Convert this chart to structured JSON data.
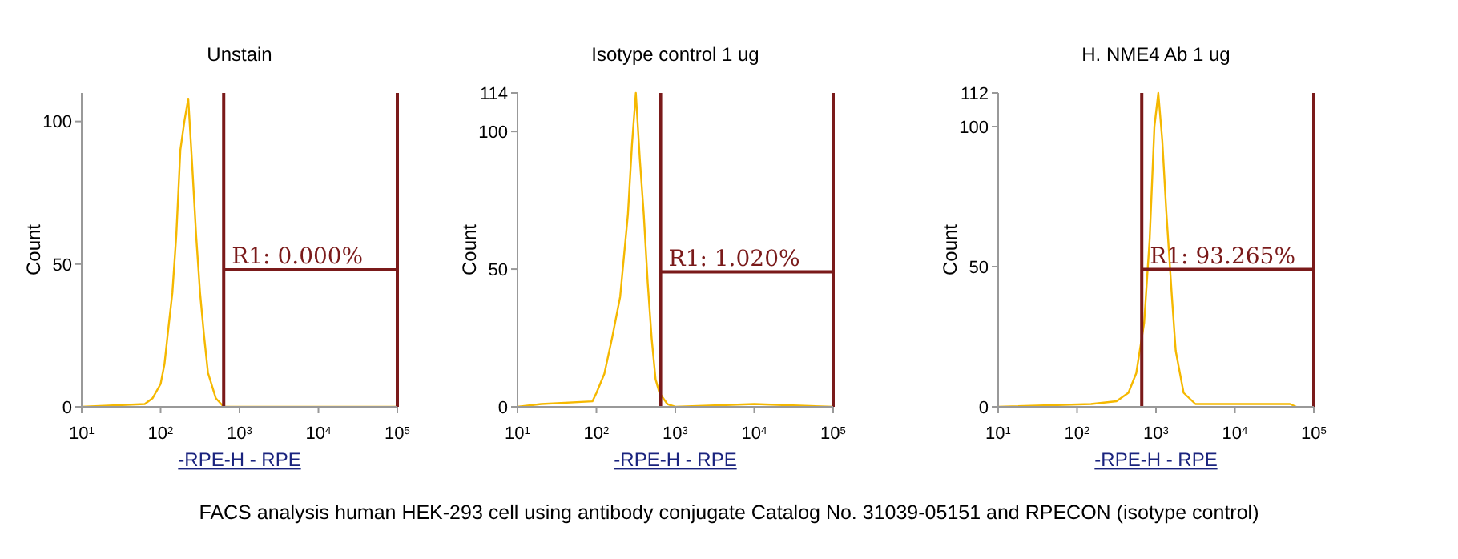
{
  "chart_data": [
    {
      "type": "line",
      "title": "Unstain",
      "xlabel": "-RPE-H - RPE",
      "ylabel": "Count",
      "log": "x",
      "xlim": [
        10,
        100000
      ],
      "xticks": [
        {
          "value": 10,
          "label": "10$^{1}$"
        },
        {
          "value": 100,
          "label": "10$^{2}$"
        },
        {
          "value": 1000,
          "label": "10$^{3}$"
        },
        {
          "value": 10000,
          "label": "10$^{4}$"
        },
        {
          "value": 100000,
          "label": "10$^{5}$"
        }
      ],
      "ylim": [
        0,
        110
      ],
      "yticks": [
        0,
        50,
        100
      ],
      "grid": false,
      "marker": "none",
      "line_style": "solid",
      "series": [
        {
          "color": "#f5b800",
          "x": [
            10,
            63,
            79,
            100,
            112,
            126,
            141,
            158,
            178,
            200,
            224,
            251,
            282,
            316,
            355,
            398,
            501,
            631,
            100000
          ],
          "values": [
            0,
            1,
            3,
            8,
            15,
            28,
            40,
            60,
            90,
            100,
            108,
            85,
            60,
            40,
            25,
            12,
            3,
            0,
            0
          ]
        },
        {
          "color": "#7a1a1a",
          "x": [
            630,
            100000
          ],
          "values": [
            48,
            48
          ]
        }
      ],
      "ref_lines": [
        {
          "axis": "x",
          "value": 630,
          "color": "#7a1a1a"
        },
        {
          "axis": "x",
          "value": 100000,
          "color": "#7a1a1a"
        }
      ],
      "annotations": [
        "R1: 0.000%"
      ]
    },
    {
      "type": "line",
      "title": "Isotype control 1 ug",
      "xlabel": "-RPE-H - RPE",
      "ylabel": "Count",
      "log": "x",
      "xlim": [
        10,
        100000
      ],
      "xticks": [
        {
          "value": 10,
          "label": "10$^{1}$"
        },
        {
          "value": 100,
          "label": "10$^{2}$"
        },
        {
          "value": 1000,
          "label": "10$^{3}$"
        },
        {
          "value": 10000,
          "label": "10$^{4}$"
        },
        {
          "value": 100000,
          "label": "10$^{5}$"
        }
      ],
      "ylim": [
        0,
        114
      ],
      "yticks": [
        0,
        50,
        100,
        114
      ],
      "grid": false,
      "marker": "none",
      "line_style": "solid",
      "series": [
        {
          "color": "#f5b800",
          "x": [
            10,
            20,
            89,
            100,
            126,
            158,
            200,
            251,
            282,
            316,
            355,
            398,
            447,
            501,
            562,
            631,
            708,
            794,
            1000,
            10000,
            100000
          ],
          "values": [
            0,
            1,
            2,
            5,
            12,
            25,
            40,
            70,
            95,
            114,
            90,
            70,
            45,
            25,
            10,
            5,
            3,
            1,
            0,
            1,
            0
          ]
        },
        {
          "color": "#7a1a1a",
          "x": [
            650,
            100000
          ],
          "values": [
            49,
            49
          ]
        }
      ],
      "ref_lines": [
        {
          "axis": "x",
          "value": 650,
          "color": "#7a1a1a"
        },
        {
          "axis": "x",
          "value": 100000,
          "color": "#7a1a1a"
        }
      ],
      "annotations": [
        "R1: 1.020%"
      ]
    },
    {
      "type": "line",
      "title": "H. NME4 Ab 1 ug",
      "xlabel": "-RPE-H - RPE",
      "ylabel": "Count",
      "log": "x",
      "xlim": [
        10,
        100000
      ],
      "xticks": [
        {
          "value": 10,
          "label": "10$^{1}$"
        },
        {
          "value": 100,
          "label": "10$^{2}$"
        },
        {
          "value": 1000,
          "label": "10$^{3}$"
        },
        {
          "value": 10000,
          "label": "10$^{4}$"
        },
        {
          "value": 100000,
          "label": "10$^{5}$"
        }
      ],
      "ylim": [
        0,
        112
      ],
      "yticks": [
        0,
        50,
        100,
        112
      ],
      "grid": false,
      "marker": "none",
      "line_style": "solid",
      "series": [
        {
          "color": "#f5b800",
          "x": [
            10,
            150,
            316,
            447,
            562,
            708,
            832,
            955,
            1070,
            1202,
            1349,
            1585,
            1778,
            2239,
            3162,
            50000,
            60000
          ],
          "values": [
            0,
            1,
            2,
            5,
            12,
            30,
            60,
            100,
            112,
            95,
            70,
            40,
            20,
            5,
            1,
            1,
            0
          ]
        },
        {
          "color": "#7a1a1a",
          "x": [
            660,
            100000
          ],
          "values": [
            49,
            49
          ]
        }
      ],
      "ref_lines": [
        {
          "axis": "x",
          "value": 660,
          "color": "#7a1a1a"
        },
        {
          "axis": "x",
          "value": 100000,
          "color": "#7a1a1a"
        }
      ],
      "annotations": [
        "R1: 93.265%",
        "FACS analysis human HEK-293 cell using antibody conjugate Catalog No. 31039-05151 and RPECON (isotype control)"
      ]
    }
  ]
}
